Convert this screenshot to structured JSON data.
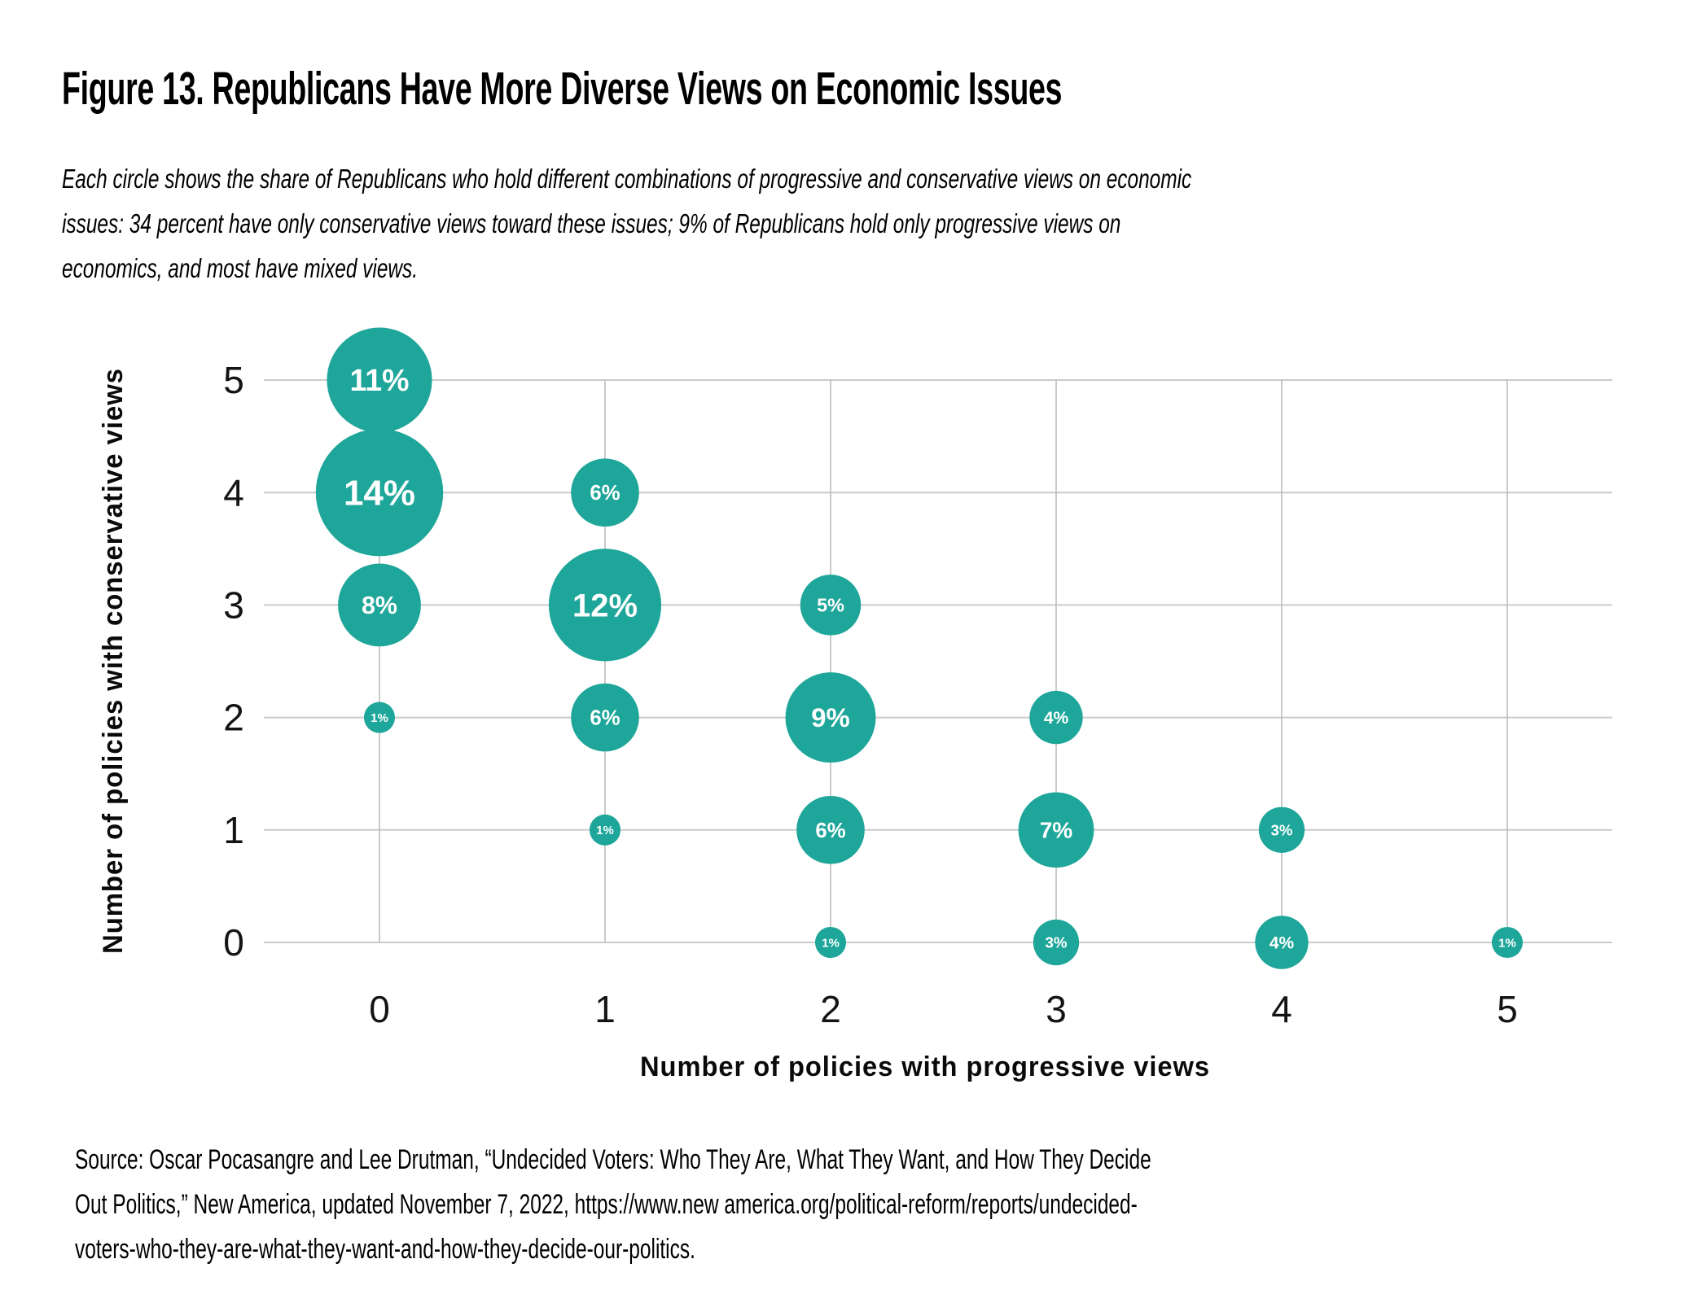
{
  "figure": {
    "title": "Figure 13. Republicans Have More Diverse Views on Economic Issues",
    "description_lines": [
      "Each circle shows the share of Republicans who hold different combinations of progressive and conservative views on economic",
      "issues: 34 percent have only conservative views toward these issues; 9% of Republicans hold only progressive views on",
      "economics, and most have mixed views."
    ],
    "source_lines": [
      "Source: Oscar Pocasangre and Lee Drutman, “Undecided Voters: Who They Are, What They Want, and How They Decide",
      "Out Politics,” New America, updated November 7, 2022, https://www.new america.org/political-reform/reports/undecided-",
      "voters-who-they-are-what-they-want-and-how-they-decide-our-politics."
    ]
  },
  "colors": {
    "bubble": "#1FA69A",
    "bubble_label": "#FFFFFF",
    "gridline_horizontal": "#CBCBCB",
    "gridline_vertical": "#B9B9B9",
    "text": "#141414"
  },
  "chart_data": {
    "type": "scatter",
    "variant": "bubble",
    "xlabel": "Number of policies with progressive views",
    "ylabel": "Number of policies with conservative views",
    "x_ticks": [
      "0",
      "1",
      "2",
      "3",
      "4",
      "5"
    ],
    "y_ticks": [
      "5",
      "4",
      "3",
      "2",
      "1",
      "0"
    ],
    "xlim": [
      -0.5,
      5.5
    ],
    "ylim": [
      -0.5,
      5.5
    ],
    "grid": true,
    "legend": false,
    "values_unit": "%",
    "points": [
      {
        "x": 0,
        "y": 5,
        "value": 11,
        "label": "11%"
      },
      {
        "x": 0,
        "y": 4,
        "value": 14,
        "label": "14%"
      },
      {
        "x": 0,
        "y": 3,
        "value": 8,
        "label": "8%"
      },
      {
        "x": 0,
        "y": 2,
        "value": 1,
        "label": "1%"
      },
      {
        "x": 1,
        "y": 4,
        "value": 6,
        "label": "6%"
      },
      {
        "x": 1,
        "y": 3,
        "value": 12,
        "label": "12%"
      },
      {
        "x": 1,
        "y": 2,
        "value": 6,
        "label": "6%"
      },
      {
        "x": 1,
        "y": 1,
        "value": 1,
        "label": "1%"
      },
      {
        "x": 2,
        "y": 3,
        "value": 5,
        "label": "5%"
      },
      {
        "x": 2,
        "y": 2,
        "value": 9,
        "label": "9%"
      },
      {
        "x": 2,
        "y": 1,
        "value": 6,
        "label": "6%"
      },
      {
        "x": 2,
        "y": 0,
        "value": 1,
        "label": "1%"
      },
      {
        "x": 3,
        "y": 2,
        "value": 4,
        "label": "4%"
      },
      {
        "x": 3,
        "y": 1,
        "value": 7,
        "label": "7%"
      },
      {
        "x": 3,
        "y": 0,
        "value": 3,
        "label": "3%"
      },
      {
        "x": 4,
        "y": 1,
        "value": 3,
        "label": "3%"
      },
      {
        "x": 4,
        "y": 0,
        "value": 4,
        "label": "4%"
      },
      {
        "x": 5,
        "y": 0,
        "value": 1,
        "label": "1%"
      }
    ]
  }
}
